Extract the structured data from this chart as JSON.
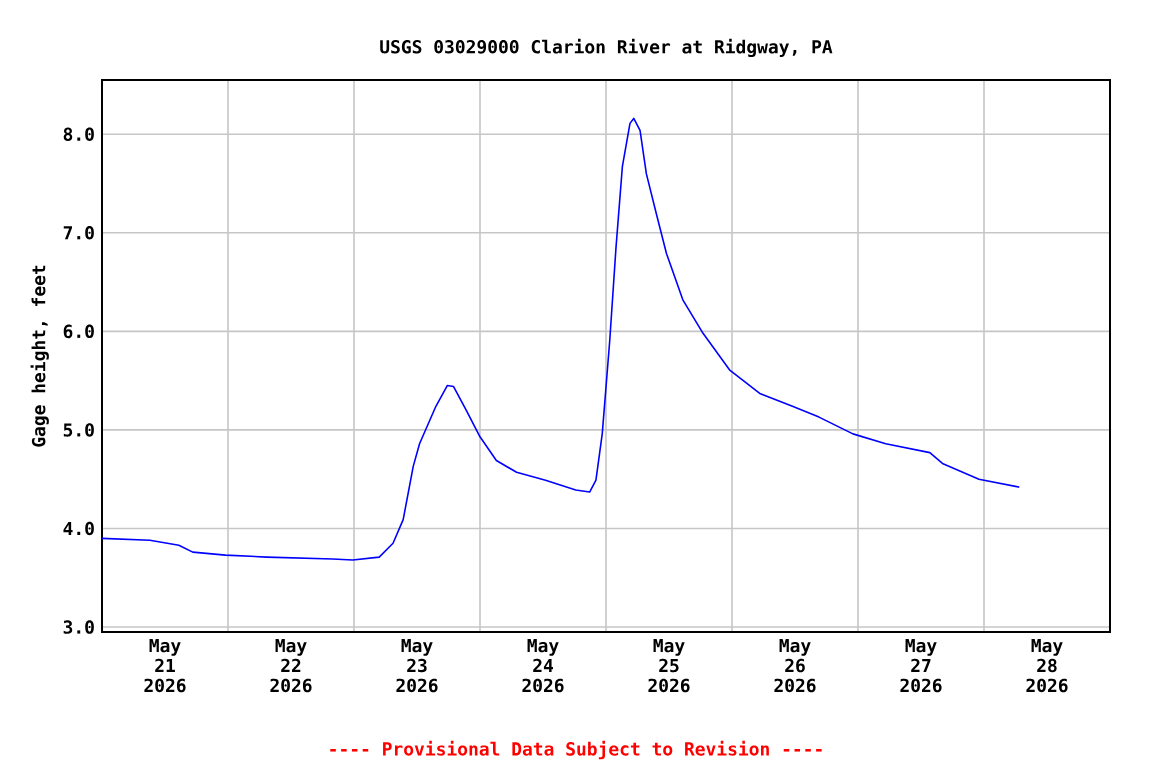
{
  "chart_data": {
    "type": "line",
    "title": "USGS 03029000 Clarion River at Ridgway, PA",
    "ylabel": "Gage height, feet",
    "annotations": [
      "---- Provisional Data Subject to Revision ----"
    ],
    "x": [
      "2026-05-21T00:00",
      "2026-05-21T09:07",
      "2026-05-21T14:38",
      "2026-05-21T17:17",
      "2026-05-21T23:31",
      "2026-05-22T07:26",
      "2026-05-22T19:55",
      "2026-05-22T23:46",
      "2026-05-23T04:48",
      "2026-05-23T07:26",
      "2026-05-23T09:22",
      "2026-05-23T11:17",
      "2026-05-23T12:29",
      "2026-05-23T15:36",
      "2026-05-23T17:46",
      "2026-05-23T18:58",
      "2026-05-23T21:22",
      "2026-05-24T00:00",
      "2026-05-24T03:07",
      "2026-05-24T06:58",
      "2026-05-24T12:29",
      "2026-05-24T18:14",
      "2026-05-24T20:53",
      "2026-05-24T22:05",
      "2026-05-24T23:17",
      "2026-05-25T00:43",
      "2026-05-25T01:55",
      "2026-05-25T03:07",
      "2026-05-25T04:34",
      "2026-05-25T05:17",
      "2026-05-25T06:29",
      "2026-05-25T07:41",
      "2026-05-25T09:36",
      "2026-05-25T11:31",
      "2026-05-25T14:38",
      "2026-05-25T18:29",
      "2026-05-25T23:31",
      "2026-05-26T05:17",
      "2026-05-26T11:31",
      "2026-05-26T16:34",
      "2026-05-26T23:02",
      "2026-05-27T05:17",
      "2026-05-27T13:41",
      "2026-05-27T16:05",
      "2026-05-27T23:02",
      "2026-05-28T06:43"
    ],
    "series": [
      {
        "color": "#0000ff",
        "values": [
          3.9,
          3.88,
          3.83,
          3.76,
          3.73,
          3.71,
          3.69,
          3.68,
          3.71,
          3.85,
          4.09,
          4.63,
          4.86,
          5.24,
          5.45,
          5.44,
          5.2,
          4.93,
          4.69,
          4.57,
          4.49,
          4.39,
          4.37,
          4.49,
          4.96,
          5.91,
          6.86,
          7.67,
          8.11,
          8.16,
          8.04,
          7.6,
          7.19,
          6.79,
          6.32,
          5.98,
          5.61,
          5.37,
          5.24,
          5.13,
          4.96,
          4.86,
          4.77,
          4.66,
          4.5,
          4.42
        ]
      }
    ],
    "xlim": [
      "2026-05-21T00:00",
      "2026-05-29T00:00"
    ],
    "xticks": [
      {
        "value": "2026-05-22T00:00",
        "label": null
      },
      {
        "value": "2026-05-23T00:00",
        "label": null
      },
      {
        "value": "2026-05-24T00:00",
        "label": null
      },
      {
        "value": "2026-05-25T00:00",
        "label": null
      },
      {
        "value": "2026-05-26T00:00",
        "label": null
      },
      {
        "value": "2026-05-27T00:00",
        "label": null
      },
      {
        "value": "2026-05-28T00:00",
        "label": null
      },
      {
        "value": "2026-05-21T12:00",
        "label": "May 21 2026"
      },
      {
        "value": "2026-05-22T12:00",
        "label": "May 22 2026"
      },
      {
        "value": "2026-05-23T12:00",
        "label": "May 23 2026"
      },
      {
        "value": "2026-05-24T12:00",
        "label": "May 24 2026"
      },
      {
        "value": "2026-05-25T12:00",
        "label": "May 25 2026"
      },
      {
        "value": "2026-05-26T12:00",
        "label": "May 26 2026"
      },
      {
        "value": "2026-05-27T12:00",
        "label": "May 27 2026"
      },
      {
        "value": "2026-05-28T12:00",
        "label": "May 28 2026"
      }
    ],
    "ylim": [
      2.95,
      8.55
    ],
    "yticks": [
      {
        "value": 3,
        "label": "3.0"
      },
      {
        "value": 4,
        "label": "4.0"
      },
      {
        "value": 5,
        "label": "5.0"
      },
      {
        "value": 6,
        "label": "6.0"
      },
      {
        "value": 7,
        "label": "7.0"
      },
      {
        "value": 8,
        "label": "8.0"
      }
    ],
    "grid": true,
    "marker": "none",
    "line_style": "solid"
  }
}
